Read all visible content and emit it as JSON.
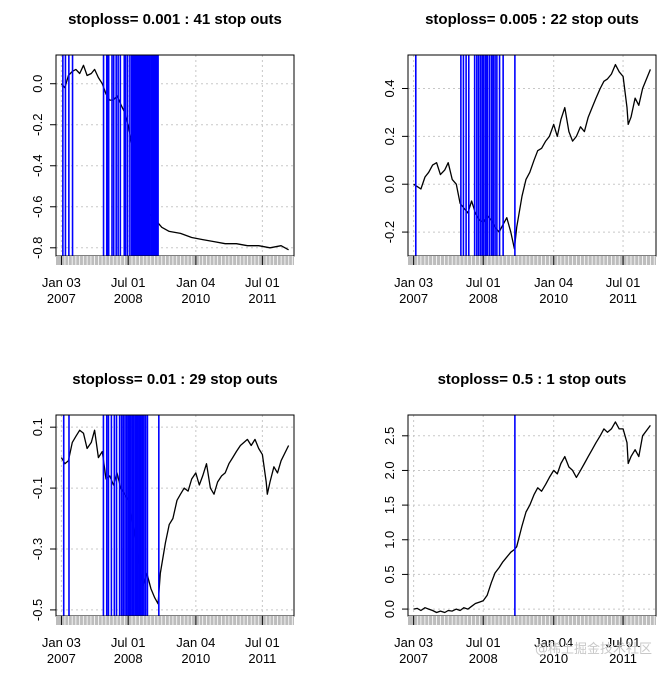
{
  "charts": {
    "xticks": [
      {
        "date": "2007-01-03",
        "line1": "Jan 03",
        "line2": "2007"
      },
      {
        "date": "2008-07-01",
        "line1": "Jul 01",
        "line2": "2008"
      },
      {
        "date": "2010-01-04",
        "line1": "Jan 04",
        "line2": "2010"
      },
      {
        "date": "2011-07-01",
        "line1": "Jul 01",
        "line2": "2011"
      }
    ],
    "xlim": [
      "2006-11-20",
      "2012-03-15"
    ]
  },
  "chart_data": [
    {
      "type": "line",
      "title": "stoploss= 0.001 : 41 stop outs",
      "ylim": [
        -0.84,
        0.14
      ],
      "yticks": [
        0.0,
        -0.2,
        -0.4,
        -0.6,
        -0.8
      ],
      "ytick_labels": [
        "0.0",
        "-0.2",
        "-0.4",
        "-0.6",
        "-0.8"
      ],
      "grid": true,
      "series_color": "#000000",
      "stop_color": "#0000ff",
      "series": {
        "x": [
          "2007-01-03",
          "2007-02-01",
          "2007-03-01",
          "2007-04-02",
          "2007-05-01",
          "2007-06-01",
          "2007-07-02",
          "2007-08-01",
          "2007-09-04",
          "2007-10-01",
          "2007-11-01",
          "2007-12-03",
          "2008-01-02",
          "2008-02-01",
          "2008-03-03",
          "2008-04-01",
          "2008-05-01",
          "2008-06-02",
          "2008-07-01",
          "2008-08-01",
          "2008-09-02",
          "2008-10-01",
          "2008-11-03",
          "2008-12-01",
          "2009-02-02",
          "2009-04-01",
          "2009-06-01",
          "2009-09-01",
          "2009-12-01",
          "2010-03-01",
          "2010-06-01",
          "2010-09-01",
          "2010-12-01",
          "2011-03-01",
          "2011-06-01",
          "2011-09-01",
          "2011-12-01",
          "2012-01-31"
        ],
        "y": [
          0.0,
          -0.02,
          0.04,
          0.06,
          0.07,
          0.05,
          0.09,
          0.04,
          0.05,
          0.07,
          0.03,
          0.0,
          -0.05,
          -0.08,
          -0.08,
          -0.06,
          -0.1,
          -0.14,
          -0.2,
          -0.3,
          -0.38,
          -0.48,
          -0.56,
          -0.62,
          -0.66,
          -0.7,
          -0.72,
          -0.73,
          -0.75,
          -0.76,
          -0.77,
          -0.78,
          -0.78,
          -0.79,
          -0.79,
          -0.8,
          -0.79,
          -0.81
        ]
      },
      "stop_outs": [
        "2007-01-15",
        "2007-02-05",
        "2007-03-05",
        "2007-04-04",
        "2007-12-13",
        "2008-01-08",
        "2008-01-18",
        "2008-01-24",
        "2008-02-20",
        "2008-03-05",
        "2008-03-25",
        "2008-04-10",
        "2008-04-28",
        "2008-05-30",
        "2008-06-10",
        "2008-06-26",
        "2008-07-15",
        "2008-07-30",
        "2008-08-10",
        "2008-08-20",
        "2008-09-01",
        "2008-09-10",
        "2008-09-20",
        "2008-09-29",
        "2008-10-07",
        "2008-10-15",
        "2008-10-23",
        "2008-11-01",
        "2008-11-10",
        "2008-11-19",
        "2008-11-28",
        "2008-12-08",
        "2008-12-17",
        "2008-12-26",
        "2009-01-06",
        "2009-01-15",
        "2009-01-24",
        "2009-02-02",
        "2009-02-11",
        "2009-02-20",
        "2009-03-02"
      ]
    },
    {
      "type": "line",
      "title": "stoploss= 0.005 : 22 stop outs",
      "ylim": [
        -0.3,
        0.54
      ],
      "yticks": [
        -0.2,
        0.0,
        0.2,
        0.4
      ],
      "ytick_labels": [
        "-0.2",
        "0.0",
        "0.2",
        "0.4"
      ],
      "grid": true,
      "series_color": "#000000",
      "stop_color": "#0000ff",
      "series": {
        "x": [
          "2007-01-03",
          "2007-02-01",
          "2007-03-01",
          "2007-04-02",
          "2007-05-01",
          "2007-06-01",
          "2007-07-02",
          "2007-08-01",
          "2007-09-04",
          "2007-10-01",
          "2007-11-01",
          "2007-12-03",
          "2008-01-02",
          "2008-02-01",
          "2008-03-03",
          "2008-04-01",
          "2008-05-01",
          "2008-06-02",
          "2008-07-01",
          "2008-08-01",
          "2008-09-02",
          "2008-10-01",
          "2008-11-03",
          "2008-12-01",
          "2009-01-02",
          "2009-02-02",
          "2009-03-02",
          "2009-03-20",
          "2009-05-01",
          "2009-06-01",
          "2009-07-01",
          "2009-08-03",
          "2009-09-01",
          "2009-10-01",
          "2009-11-02",
          "2009-12-01",
          "2010-01-04",
          "2010-02-01",
          "2010-03-01",
          "2010-04-01",
          "2010-05-03",
          "2010-06-01",
          "2010-07-01",
          "2010-08-02",
          "2010-09-01",
          "2010-10-01",
          "2010-11-01",
          "2010-12-01",
          "2011-01-03",
          "2011-02-01",
          "2011-03-01",
          "2011-04-01",
          "2011-05-02",
          "2011-06-01",
          "2011-07-01",
          "2011-08-01",
          "2011-08-10",
          "2011-09-01",
          "2011-10-03",
          "2011-11-01",
          "2011-12-01",
          "2012-01-31"
        ],
        "y": [
          0.0,
          -0.01,
          -0.02,
          0.03,
          0.05,
          0.08,
          0.09,
          0.04,
          0.06,
          0.09,
          0.02,
          0.0,
          -0.08,
          -0.1,
          -0.12,
          -0.07,
          -0.12,
          -0.15,
          -0.16,
          -0.13,
          -0.15,
          -0.18,
          -0.2,
          -0.17,
          -0.14,
          -0.2,
          -0.27,
          -0.18,
          -0.05,
          0.02,
          0.05,
          0.1,
          0.14,
          0.15,
          0.18,
          0.2,
          0.25,
          0.2,
          0.27,
          0.32,
          0.22,
          0.18,
          0.2,
          0.24,
          0.22,
          0.28,
          0.32,
          0.36,
          0.4,
          0.43,
          0.44,
          0.46,
          0.5,
          0.47,
          0.45,
          0.32,
          0.25,
          0.28,
          0.36,
          0.33,
          0.4,
          0.48
        ]
      },
      "stop_outs": [
        "2007-01-20",
        "2008-01-08",
        "2008-01-28",
        "2008-02-18",
        "2008-03-10",
        "2008-04-25",
        "2008-05-12",
        "2008-05-26",
        "2008-06-10",
        "2008-06-24",
        "2008-07-02",
        "2008-07-16",
        "2008-07-24",
        "2008-08-04",
        "2008-08-20",
        "2008-09-05",
        "2008-09-18",
        "2008-10-02",
        "2008-10-16",
        "2008-11-06",
        "2008-12-04",
        "2009-03-06"
      ]
    },
    {
      "type": "line",
      "title": "stoploss= 0.01 : 29 stop outs",
      "ylim": [
        -0.52,
        0.14
      ],
      "yticks": [
        0.1,
        -0.1,
        -0.3,
        -0.5
      ],
      "ytick_labels": [
        "0.1",
        "-0.1",
        "-0.3",
        "-0.5"
      ],
      "grid": true,
      "series_color": "#000000",
      "stop_color": "#0000ff",
      "series": {
        "x": [
          "2007-01-03",
          "2007-02-01",
          "2007-03-01",
          "2007-04-02",
          "2007-05-01",
          "2007-06-01",
          "2007-07-02",
          "2007-08-01",
          "2007-09-04",
          "2007-10-01",
          "2007-11-01",
          "2007-12-03",
          "2008-01-02",
          "2008-02-01",
          "2008-03-03",
          "2008-04-01",
          "2008-05-01",
          "2008-06-02",
          "2008-07-01",
          "2008-08-01",
          "2008-09-02",
          "2008-10-01",
          "2008-11-03",
          "2008-12-01",
          "2009-01-02",
          "2009-02-02",
          "2009-03-02",
          "2009-03-20",
          "2009-05-01",
          "2009-06-01",
          "2009-07-01",
          "2009-08-03",
          "2009-09-01",
          "2009-10-01",
          "2009-11-02",
          "2009-12-01",
          "2010-01-04",
          "2010-02-01",
          "2010-03-01",
          "2010-04-01",
          "2010-05-03",
          "2010-06-01",
          "2010-07-01",
          "2010-08-02",
          "2010-09-01",
          "2010-10-01",
          "2010-11-01",
          "2010-12-01",
          "2011-01-03",
          "2011-02-01",
          "2011-03-01",
          "2011-04-01",
          "2011-05-02",
          "2011-06-01",
          "2011-07-01",
          "2011-08-01",
          "2011-08-10",
          "2011-09-01",
          "2011-10-03",
          "2011-11-01",
          "2011-12-01",
          "2012-01-31"
        ],
        "y": [
          0.0,
          -0.02,
          -0.01,
          0.05,
          0.07,
          0.09,
          0.08,
          0.03,
          0.05,
          0.09,
          0.0,
          0.02,
          -0.07,
          -0.06,
          -0.09,
          -0.05,
          -0.1,
          -0.12,
          -0.14,
          -0.2,
          -0.28,
          -0.36,
          -0.42,
          -0.38,
          -0.43,
          -0.46,
          -0.48,
          -0.38,
          -0.28,
          -0.22,
          -0.2,
          -0.14,
          -0.12,
          -0.1,
          -0.11,
          -0.07,
          -0.05,
          -0.09,
          -0.06,
          -0.02,
          -0.1,
          -0.12,
          -0.08,
          -0.06,
          -0.05,
          -0.02,
          0.0,
          0.02,
          0.04,
          0.05,
          0.06,
          0.04,
          0.06,
          0.03,
          0.01,
          -0.08,
          -0.12,
          -0.08,
          -0.03,
          -0.05,
          -0.01,
          0.04
        ]
      },
      "stop_outs": [
        "2007-01-22",
        "2007-03-06",
        "2007-12-12",
        "2008-01-08",
        "2008-01-22",
        "2008-02-15",
        "2008-03-10",
        "2008-03-28",
        "2008-04-22",
        "2008-05-08",
        "2008-05-22",
        "2008-06-05",
        "2008-06-18",
        "2008-06-30",
        "2008-07-10",
        "2008-07-22",
        "2008-08-04",
        "2008-08-14",
        "2008-08-26",
        "2008-09-05",
        "2008-09-16",
        "2008-09-26",
        "2008-10-06",
        "2008-10-15",
        "2008-10-27",
        "2008-11-07",
        "2008-11-20",
        "2008-12-05",
        "2009-03-08"
      ]
    },
    {
      "type": "line",
      "title": "stoploss= 0.5 : 1 stop outs",
      "ylim": [
        -0.1,
        2.8
      ],
      "yticks": [
        0.0,
        0.5,
        1.0,
        1.5,
        2.0,
        2.5
      ],
      "ytick_labels": [
        "0.0",
        "0.5",
        "1.0",
        "1.5",
        "2.0",
        "2.5"
      ],
      "grid": true,
      "series_color": "#000000",
      "stop_color": "#0000ff",
      "series": {
        "x": [
          "2007-01-03",
          "2007-02-01",
          "2007-03-01",
          "2007-04-02",
          "2007-05-01",
          "2007-06-01",
          "2007-07-02",
          "2007-08-01",
          "2007-09-04",
          "2007-10-01",
          "2007-11-01",
          "2007-12-03",
          "2008-01-02",
          "2008-02-01",
          "2008-03-03",
          "2008-04-01",
          "2008-05-01",
          "2008-06-02",
          "2008-07-01",
          "2008-08-01",
          "2008-09-02",
          "2008-10-01",
          "2008-11-03",
          "2008-12-01",
          "2009-01-02",
          "2009-02-02",
          "2009-03-02",
          "2009-03-20",
          "2009-05-01",
          "2009-06-01",
          "2009-07-01",
          "2009-08-03",
          "2009-09-01",
          "2009-10-01",
          "2009-11-02",
          "2009-12-01",
          "2010-01-04",
          "2010-02-01",
          "2010-03-01",
          "2010-04-01",
          "2010-05-03",
          "2010-06-01",
          "2010-07-01",
          "2010-08-02",
          "2010-09-01",
          "2010-10-01",
          "2010-11-01",
          "2010-12-01",
          "2011-01-03",
          "2011-02-01",
          "2011-03-01",
          "2011-04-01",
          "2011-05-02",
          "2011-06-01",
          "2011-07-01",
          "2011-08-01",
          "2011-08-10",
          "2011-09-01",
          "2011-10-03",
          "2011-11-01",
          "2011-12-01",
          "2012-01-31"
        ],
        "y": [
          0.0,
          0.01,
          -0.02,
          0.02,
          0.0,
          -0.02,
          -0.05,
          -0.03,
          -0.05,
          -0.02,
          -0.03,
          0.0,
          -0.02,
          0.02,
          0.0,
          0.04,
          0.08,
          0.1,
          0.12,
          0.2,
          0.38,
          0.52,
          0.6,
          0.68,
          0.75,
          0.82,
          0.86,
          0.9,
          1.2,
          1.4,
          1.5,
          1.65,
          1.75,
          1.7,
          1.8,
          1.9,
          2.0,
          1.95,
          2.1,
          2.2,
          2.05,
          2.0,
          1.9,
          2.0,
          2.1,
          2.2,
          2.3,
          2.4,
          2.5,
          2.6,
          2.55,
          2.6,
          2.7,
          2.6,
          2.6,
          2.4,
          2.1,
          2.2,
          2.3,
          2.2,
          2.5,
          2.65
        ]
      },
      "stop_outs": [
        "2009-03-06"
      ]
    }
  ],
  "watermark": "@稀土掘金技术社区"
}
